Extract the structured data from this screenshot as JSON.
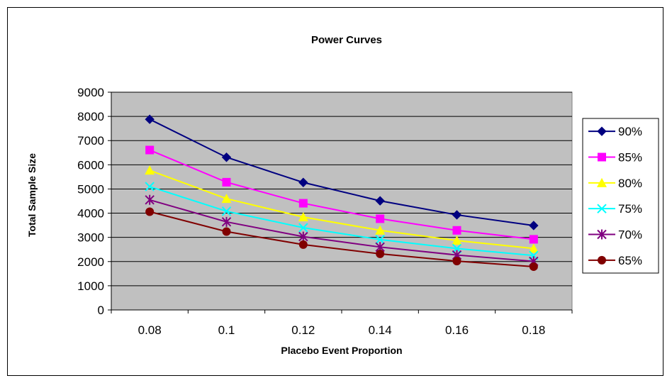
{
  "chart_data": {
    "type": "line",
    "title": "Power Curves",
    "xlabel": "Placebo Event Proportion",
    "ylabel": "Total Sample Size",
    "categories": [
      "0.08",
      "0.1",
      "0.12",
      "0.14",
      "0.16",
      "0.18"
    ],
    "ylim": [
      0,
      9000
    ],
    "yticks": [
      0,
      1000,
      2000,
      3000,
      4000,
      5000,
      6000,
      7000,
      8000,
      9000
    ],
    "grid": true,
    "legend": "right",
    "plot_background": "#C0C0C0",
    "series": [
      {
        "name": "90%",
        "color": "#000080",
        "marker": "diamond",
        "values": [
          7880,
          6310,
          5270,
          4510,
          3930,
          3490
        ]
      },
      {
        "name": "85%",
        "color": "#FF00FF",
        "marker": "square",
        "values": [
          6610,
          5280,
          4410,
          3770,
          3290,
          2920
        ]
      },
      {
        "name": "80%",
        "color": "#FFFF00",
        "marker": "triangle",
        "values": [
          5770,
          4600,
          3840,
          3290,
          2870,
          2540
        ]
      },
      {
        "name": "75%",
        "color": "#00FFFF",
        "marker": "x",
        "values": [
          5100,
          4080,
          3400,
          2910,
          2540,
          2250
        ]
      },
      {
        "name": "70%",
        "color": "#800080",
        "marker": "star",
        "values": [
          4550,
          3640,
          3030,
          2600,
          2270,
          2010
        ]
      },
      {
        "name": "65%",
        "color": "#800000",
        "marker": "circle",
        "values": [
          4060,
          3240,
          2700,
          2320,
          2020,
          1790
        ]
      }
    ]
  }
}
